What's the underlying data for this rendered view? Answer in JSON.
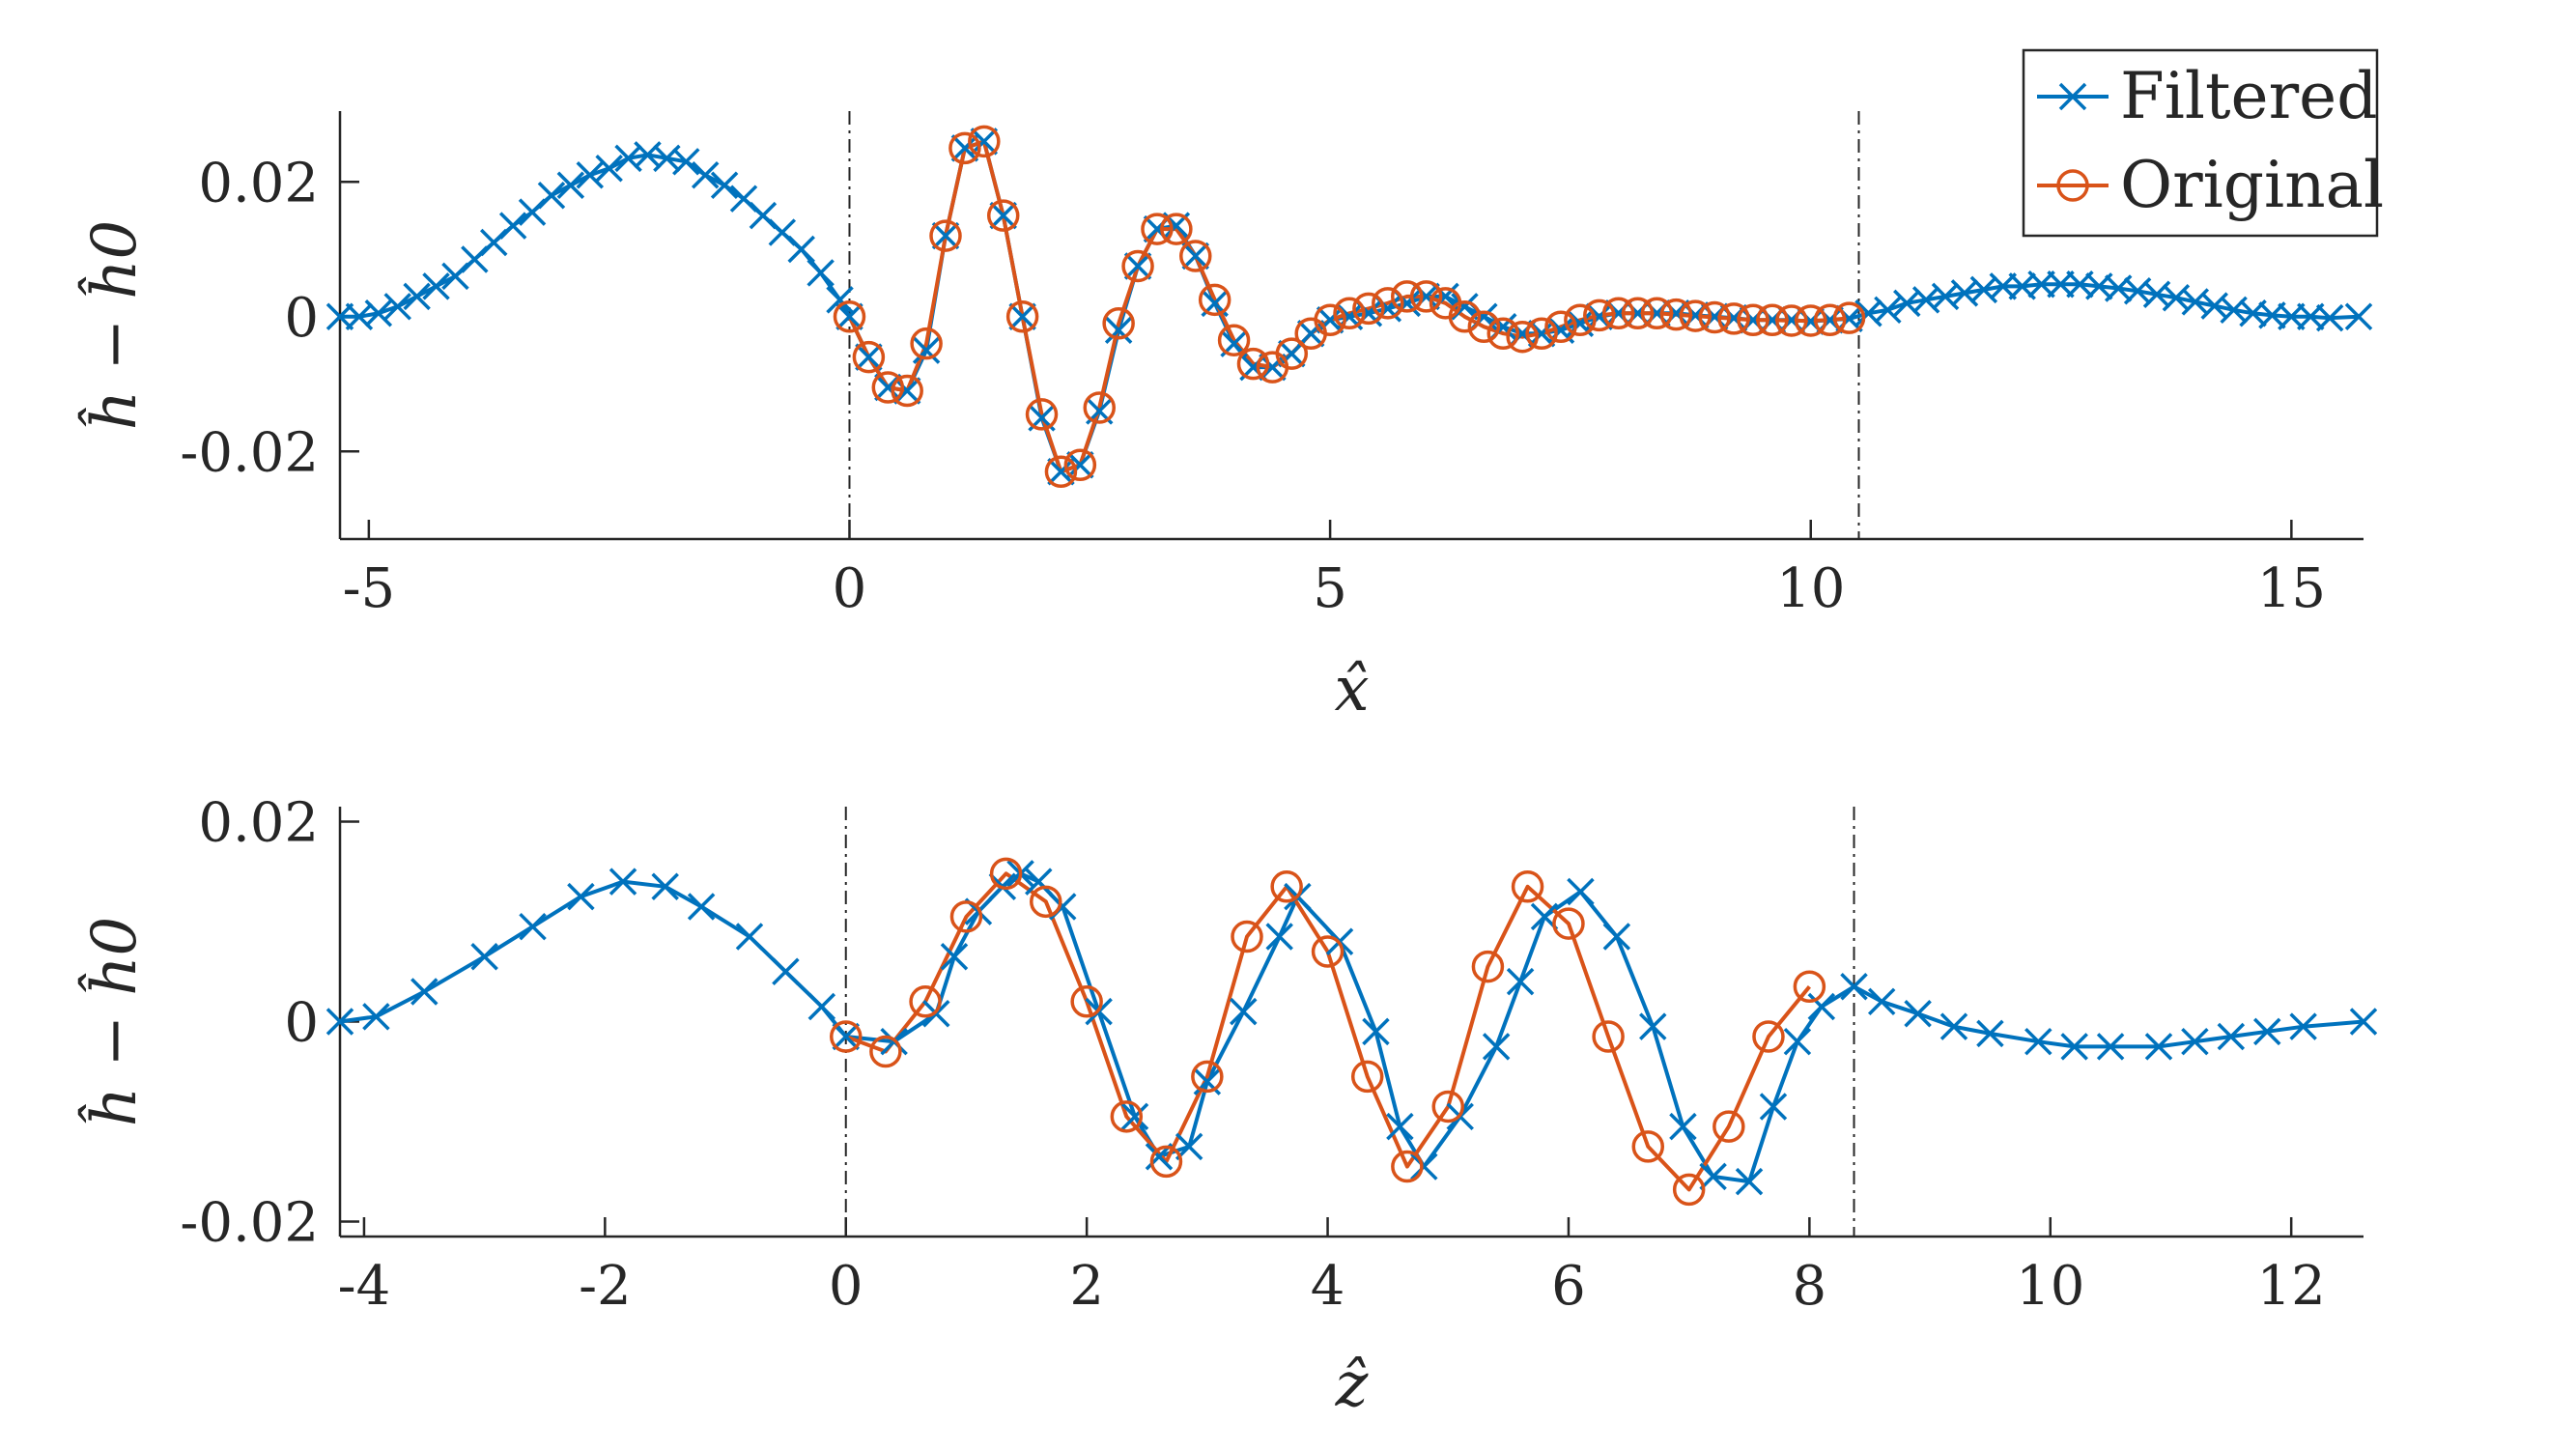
{
  "chart_data": [
    {
      "type": "line",
      "xlabel": "x̂",
      "ylabel": "ĥ − ĥ0",
      "xlim": [
        -5.3,
        15.75
      ],
      "ylim": [
        -0.033,
        0.0305
      ],
      "xticks": [
        -5,
        0,
        5,
        10,
        15
      ],
      "xtick_labels": [
        "-5",
        "0",
        "5",
        "10",
        "15"
      ],
      "yticks": [
        -0.02,
        0,
        0.02
      ],
      "ytick_labels": [
        "-0.02",
        "0",
        "0.02"
      ],
      "vlines": [
        0,
        10.5
      ],
      "legend": {
        "position": "top-right",
        "entries": [
          "Filtered",
          "Original"
        ]
      },
      "series": [
        {
          "name": "Filtered",
          "color": "#0072BD",
          "marker": "x",
          "x": [
            -5.3,
            -5.1,
            -4.9,
            -4.7,
            -4.5,
            -4.3,
            -4.1,
            -3.9,
            -3.7,
            -3.5,
            -3.3,
            -3.1,
            -2.9,
            -2.7,
            -2.5,
            -2.3,
            -2.1,
            -1.9,
            -1.7,
            -1.5,
            -1.3,
            -1.1,
            -0.9,
            -0.7,
            -0.5,
            -0.3,
            -0.1,
            0,
            0.2,
            0.4,
            0.6,
            0.8,
            1.0,
            1.2,
            1.4,
            1.6,
            1.8,
            2.0,
            2.2,
            2.4,
            2.6,
            2.8,
            3.0,
            3.2,
            3.4,
            3.6,
            3.8,
            4.0,
            4.2,
            4.4,
            4.6,
            4.8,
            5.0,
            5.2,
            5.4,
            5.6,
            5.8,
            6.0,
            6.2,
            6.4,
            6.6,
            6.8,
            7.0,
            7.2,
            7.4,
            7.6,
            7.8,
            8.0,
            8.2,
            8.4,
            8.6,
            8.8,
            9.0,
            9.2,
            9.4,
            9.6,
            9.8,
            10.0,
            10.2,
            10.4,
            10.6,
            10.8,
            11.0,
            11.2,
            11.4,
            11.6,
            11.8,
            12.0,
            12.2,
            12.4,
            12.6,
            12.8,
            13.0,
            13.2,
            13.4,
            13.6,
            13.8,
            14.0,
            14.2,
            14.4,
            14.6,
            14.8,
            15.0,
            15.2,
            15.4,
            15.7
          ],
          "y": [
            0,
            0,
            0.0005,
            0.0015,
            0.003,
            0.0045,
            0.006,
            0.0085,
            0.011,
            0.0135,
            0.0155,
            0.018,
            0.0195,
            0.021,
            0.022,
            0.0235,
            0.024,
            0.0235,
            0.023,
            0.021,
            0.0195,
            0.0175,
            0.015,
            0.0125,
            0.01,
            0.0065,
            0.0025,
            0,
            -0.006,
            -0.0105,
            -0.011,
            -0.005,
            0.012,
            0.025,
            0.026,
            0.015,
            0,
            -0.015,
            -0.023,
            -0.022,
            -0.014,
            -0.002,
            0.0075,
            0.013,
            0.0135,
            0.009,
            0.002,
            -0.004,
            -0.0075,
            -0.0075,
            -0.0055,
            -0.0025,
            -0.0005,
            0,
            0.0005,
            0.0012,
            0.002,
            0.003,
            0.003,
            0.0015,
            0,
            -0.0015,
            -0.0025,
            -0.0025,
            -0.002,
            -0.001,
            0,
            0.0005,
            0.0005,
            0.0005,
            0.0005,
            0.0002,
            0,
            -0.0002,
            -0.0005,
            -0.0005,
            -0.0005,
            -0.0007,
            -0.0005,
            -0.0003,
            0.0005,
            0.001,
            0.002,
            0.0025,
            0.003,
            0.0035,
            0.004,
            0.0045,
            0.0045,
            0.0048,
            0.0048,
            0.0048,
            0.0045,
            0.0042,
            0.0038,
            0.0033,
            0.0028,
            0.0022,
            0.0016,
            0.001,
            0.0005,
            0.0002,
            0,
            0,
            -0.0002,
            0
          ]
        },
        {
          "name": "Original",
          "color": "#D95319",
          "marker": "o",
          "x": [
            0,
            0.2,
            0.4,
            0.6,
            0.8,
            1.0,
            1.2,
            1.4,
            1.6,
            1.8,
            2.0,
            2.2,
            2.4,
            2.6,
            2.8,
            3.0,
            3.2,
            3.4,
            3.6,
            3.8,
            4.0,
            4.2,
            4.4,
            4.6,
            4.8,
            5.0,
            5.2,
            5.4,
            5.6,
            5.8,
            6.0,
            6.2,
            6.4,
            6.6,
            6.8,
            7.0,
            7.2,
            7.4,
            7.6,
            7.8,
            8.0,
            8.2,
            8.4,
            8.6,
            8.8,
            9.0,
            9.2,
            9.4,
            9.6,
            9.8,
            10.0,
            10.2,
            10.4
          ],
          "y": [
            0,
            -0.006,
            -0.0105,
            -0.011,
            -0.004,
            0.012,
            0.025,
            0.026,
            0.015,
            0,
            -0.0145,
            -0.023,
            -0.022,
            -0.0135,
            -0.001,
            0.0075,
            0.013,
            0.013,
            0.009,
            0.0025,
            -0.0035,
            -0.007,
            -0.0075,
            -0.0055,
            -0.0025,
            -0.0005,
            0.0005,
            0.0012,
            0.002,
            0.003,
            0.003,
            0.002,
            0,
            -0.0015,
            -0.0025,
            -0.003,
            -0.0025,
            -0.0015,
            -0.0005,
            0.0002,
            0.0005,
            0.0005,
            0.0005,
            0.0003,
            0.0001,
            -0.0001,
            -0.0003,
            -0.0005,
            -0.0005,
            -0.0006,
            -0.0006,
            -0.0005,
            -0.0002
          ]
        }
      ]
    },
    {
      "type": "line",
      "xlabel": "ẑ",
      "ylabel": "ĥ − ĥ0",
      "xlim": [
        -4.2,
        12.6
      ],
      "ylim": [
        -0.0215,
        0.0215
      ],
      "xticks": [
        -4,
        -2,
        0,
        2,
        4,
        6,
        8,
        10,
        12
      ],
      "xtick_labels": [
        "-4",
        "-2",
        "0",
        "2",
        "4",
        "6",
        "8",
        "10",
        "12"
      ],
      "yticks": [
        -0.02,
        0,
        0.02
      ],
      "ytick_labels": [
        "-0.02",
        "0",
        "0.02"
      ],
      "vlines": [
        0,
        8.37
      ],
      "series": [
        {
          "name": "Filtered",
          "color": "#0072BD",
          "marker": "x",
          "x": [
            -4.2,
            -3.9,
            -3.5,
            -3.0,
            -2.6,
            -2.2,
            -1.85,
            -1.5,
            -1.2,
            -0.8,
            -0.5,
            -0.2,
            0,
            0.4,
            0.75,
            0.9,
            1.1,
            1.3,
            1.45,
            1.6,
            1.8,
            2.1,
            2.4,
            2.6,
            2.85,
            3.0,
            3.3,
            3.6,
            3.75,
            4.1,
            4.4,
            4.6,
            4.8,
            5.1,
            5.4,
            5.6,
            5.8,
            6.1,
            6.4,
            6.7,
            6.95,
            7.2,
            7.5,
            7.7,
            7.9,
            8.1,
            8.37,
            8.6,
            8.9,
            9.2,
            9.5,
            9.9,
            10.2,
            10.5,
            10.9,
            11.2,
            11.5,
            11.8,
            12.1,
            12.6
          ],
          "y": [
            0,
            0.0005,
            0.003,
            0.0065,
            0.0095,
            0.0125,
            0.014,
            0.0135,
            0.0115,
            0.0085,
            0.005,
            0.0015,
            -0.0015,
            -0.002,
            0.0008,
            0.0065,
            0.011,
            0.0135,
            0.0148,
            0.014,
            0.0115,
            0.001,
            -0.0095,
            -0.0135,
            -0.0125,
            -0.006,
            0.001,
            0.0085,
            0.0125,
            0.008,
            -0.001,
            -0.0105,
            -0.0145,
            -0.0095,
            -0.0025,
            0.004,
            0.0105,
            0.013,
            0.0085,
            -0.0005,
            -0.0105,
            -0.0155,
            -0.016,
            -0.0085,
            -0.002,
            0.0015,
            0.0035,
            0.002,
            0.0008,
            -0.0005,
            -0.0012,
            -0.002,
            -0.0025,
            -0.0025,
            -0.0025,
            -0.002,
            -0.0015,
            -0.001,
            -0.0005,
            0
          ]
        },
        {
          "name": "Original",
          "color": "#D95319",
          "marker": "o",
          "x": [
            0,
            0.33,
            0.66,
            1.0,
            1.33,
            1.66,
            2.0,
            2.33,
            2.66,
            3.0,
            3.33,
            3.66,
            4.0,
            4.33,
            4.66,
            5.0,
            5.33,
            5.66,
            6.0,
            6.33,
            6.66,
            7.0,
            7.33,
            7.66,
            8.0
          ],
          "y": [
            -0.0015,
            -0.003,
            0.002,
            0.0105,
            0.0148,
            0.012,
            0.002,
            -0.0095,
            -0.014,
            -0.0055,
            0.0085,
            0.0135,
            0.007,
            -0.0055,
            -0.0145,
            -0.0085,
            0.0055,
            0.0135,
            0.0098,
            -0.0015,
            -0.0125,
            -0.0168,
            -0.0105,
            -0.0015,
            0.0035
          ]
        }
      ]
    }
  ]
}
